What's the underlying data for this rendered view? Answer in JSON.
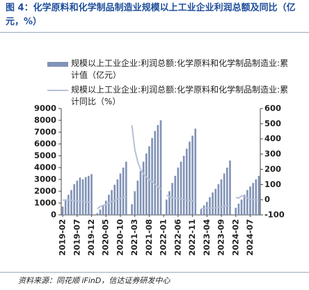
{
  "chart_data": {
    "type": "bar_line",
    "title": "图 4：化学原料和化学制品制造业规模以上工业企业利润总额及同比（亿元，%）",
    "source": "资料来源：同花顺 iFinD，信达证券研发中心",
    "categories": [
      "2019-02",
      null,
      null,
      null,
      null,
      "2019-07",
      null,
      null,
      null,
      null,
      "2019-12",
      null,
      null,
      null,
      null,
      "2020-05",
      null,
      null,
      null,
      null,
      "2020-10",
      null,
      null,
      null,
      null,
      "2021-03",
      null,
      null,
      null,
      null,
      "2021-08",
      null,
      null,
      null,
      null,
      "2022-01",
      null,
      null,
      null,
      null,
      "2022-06",
      null,
      null,
      null,
      null,
      "2022-11",
      null,
      null,
      null,
      null,
      "2023-04",
      null,
      null,
      null,
      null,
      "2023-09",
      null,
      null,
      null,
      null,
      "2024-02",
      null,
      null,
      null,
      null,
      "2024-07",
      null,
      null,
      null
    ],
    "series": [
      {
        "name": "规模以上工业企业:利润总额:化学原料和化学制品制造业:累计值（亿元）",
        "color": "#8193b6",
        "type": "bar",
        "values": [
          700,
          1200,
          1700,
          2100,
          2600,
          2900,
          3150,
          3000,
          3200,
          3300,
          3450,
          null,
          150,
          450,
          800,
          1200,
          1700,
          2100,
          2550,
          3000,
          3500,
          4000,
          4500,
          null,
          900,
          2000,
          2900,
          3700,
          4500,
          5200,
          5800,
          6500,
          7100,
          7600,
          8000,
          null,
          1300,
          2000,
          2700,
          3300,
          4000,
          4500,
          5000,
          5600,
          6200,
          6700,
          7300,
          null,
          500,
          800,
          1100,
          1500,
          1900,
          2200,
          2600,
          3000,
          3500,
          4000,
          4600,
          null,
          600,
          950,
          1300,
          1700,
          2100,
          2400,
          2700,
          3000,
          3300
        ]
      },
      {
        "name": "规模以上工业企业:利润总额:化学原料和化学制品制造业:累计同比（%）",
        "color": "#b6c0d7",
        "type": "line",
        "axis": "y2",
        "values": [
          -3,
          -2,
          -2,
          -4,
          -6,
          -8,
          -10,
          -12,
          -14,
          -16,
          -20,
          null,
          -60,
          -45,
          -38,
          -30,
          -20,
          -12,
          -5,
          3,
          10,
          15,
          18,
          null,
          490,
          330,
          250,
          200,
          170,
          150,
          130,
          120,
          100,
          85,
          70,
          null,
          30,
          20,
          15,
          10,
          10,
          5,
          0,
          -3,
          -5,
          -8,
          -10,
          null,
          -60,
          -58,
          -55,
          -55,
          -54,
          -53,
          -50,
          -47,
          -43,
          -38,
          -35,
          null,
          15,
          10,
          25,
          20,
          12,
          5,
          0,
          -2,
          -5
        ]
      }
    ],
    "ylim": [
      0,
      9000
    ],
    "yticks": [
      0,
      1000,
      2000,
      3000,
      4000,
      5000,
      6000,
      7000,
      8000,
      9000
    ],
    "y2lim": [
      -100,
      600
    ],
    "y2ticks": [
      -100,
      0,
      100,
      200,
      300,
      400,
      500,
      600
    ]
  }
}
